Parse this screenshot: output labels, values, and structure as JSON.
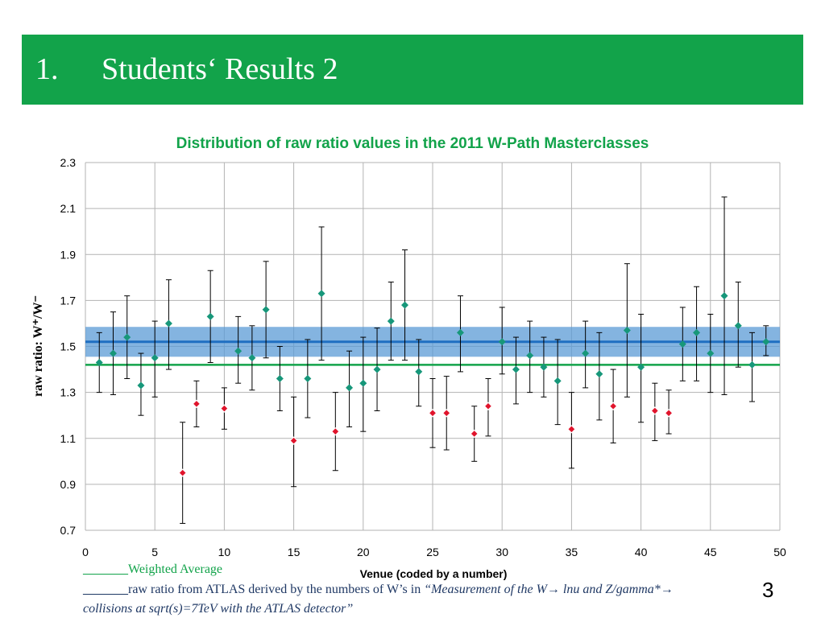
{
  "slide": {
    "number": "1.",
    "title": "Students‘ Results 2",
    "page_number": "3"
  },
  "legend": {
    "weighted_blank": "_______",
    "weighted_label": "Weighted Average",
    "atlas_blank": "_______",
    "atlas_text": "raw ratio from ATLAS derived by the numbers of W’s in ",
    "atlas_citation": "“Measurement of the W→ lnu and Z/gamma*→",
    "atlas_citation2": "collisions at sqrt(s)=7TeV with the ATLAS detector”"
  },
  "colors": {
    "header": "#12a34a",
    "student_marker": "#17977a",
    "reference_marker": "#e0142c",
    "weighted_average": "#1f6fc1",
    "weighted_band": "#5b9bd5",
    "atlas_line": "#12a34a"
  },
  "chart_data": {
    "type": "scatter",
    "title": "Distribution of raw ratio values in the 2011 W-Path Masterclasses",
    "xlabel": "Venue (coded by a number)",
    "ylabel": "raw ratio:  W⁺/W⁻",
    "xlim": [
      0,
      50
    ],
    "ylim": [
      0.7,
      2.3
    ],
    "xticks": [
      0,
      5,
      10,
      15,
      20,
      25,
      30,
      35,
      40,
      45,
      50
    ],
    "yticks": [
      0.7,
      0.9,
      1.1,
      1.3,
      1.5,
      1.7,
      1.9,
      2.1,
      2.3
    ],
    "ytick_labels": [
      "0.7",
      "0.9",
      "1.1",
      "1.3",
      "1.5",
      "1.7",
      "1.9",
      "2.1",
      "2.3"
    ],
    "grid": true,
    "error_bars": true,
    "weighted_average": 1.52,
    "weighted_average_band": [
      1.455,
      1.585
    ],
    "atlas_ratio": 1.42,
    "series": [
      {
        "marker": "diamond",
        "color": "#17977a",
        "points": [
          {
            "x": 1,
            "y": 1.43,
            "lo": 1.3,
            "hi": 1.56
          },
          {
            "x": 2,
            "y": 1.47,
            "lo": 1.29,
            "hi": 1.65
          },
          {
            "x": 3,
            "y": 1.54,
            "lo": 1.36,
            "hi": 1.72
          },
          {
            "x": 4,
            "y": 1.33,
            "lo": 1.2,
            "hi": 1.47
          },
          {
            "x": 5,
            "y": 1.45,
            "lo": 1.28,
            "hi": 1.61
          },
          {
            "x": 6,
            "y": 1.6,
            "lo": 1.4,
            "hi": 1.79
          },
          {
            "x": 9,
            "y": 1.63,
            "lo": 1.43,
            "hi": 1.83
          },
          {
            "x": 11,
            "y": 1.48,
            "lo": 1.34,
            "hi": 1.63
          },
          {
            "x": 12,
            "y": 1.45,
            "lo": 1.31,
            "hi": 1.59
          },
          {
            "x": 13,
            "y": 1.66,
            "lo": 1.45,
            "hi": 1.87
          },
          {
            "x": 14,
            "y": 1.36,
            "lo": 1.22,
            "hi": 1.5
          },
          {
            "x": 16,
            "y": 1.36,
            "lo": 1.19,
            "hi": 1.53
          },
          {
            "x": 17,
            "y": 1.73,
            "lo": 1.44,
            "hi": 2.02
          },
          {
            "x": 19,
            "y": 1.32,
            "lo": 1.15,
            "hi": 1.48
          },
          {
            "x": 20,
            "y": 1.34,
            "lo": 1.13,
            "hi": 1.54
          },
          {
            "x": 21,
            "y": 1.4,
            "lo": 1.22,
            "hi": 1.58
          },
          {
            "x": 22,
            "y": 1.61,
            "lo": 1.44,
            "hi": 1.78
          },
          {
            "x": 23,
            "y": 1.68,
            "lo": 1.44,
            "hi": 1.92
          },
          {
            "x": 24,
            "y": 1.39,
            "lo": 1.24,
            "hi": 1.53
          },
          {
            "x": 27,
            "y": 1.56,
            "lo": 1.39,
            "hi": 1.72
          },
          {
            "x": 30,
            "y": 1.52,
            "lo": 1.38,
            "hi": 1.67
          },
          {
            "x": 31,
            "y": 1.4,
            "lo": 1.25,
            "hi": 1.54
          },
          {
            "x": 32,
            "y": 1.46,
            "lo": 1.3,
            "hi": 1.61
          },
          {
            "x": 33,
            "y": 1.41,
            "lo": 1.28,
            "hi": 1.54
          },
          {
            "x": 34,
            "y": 1.35,
            "lo": 1.16,
            "hi": 1.53
          },
          {
            "x": 36,
            "y": 1.47,
            "lo": 1.32,
            "hi": 1.61
          },
          {
            "x": 37,
            "y": 1.38,
            "lo": 1.18,
            "hi": 1.56
          },
          {
            "x": 39,
            "y": 1.57,
            "lo": 1.28,
            "hi": 1.86
          },
          {
            "x": 40,
            "y": 1.41,
            "lo": 1.17,
            "hi": 1.64
          },
          {
            "x": 43,
            "y": 1.51,
            "lo": 1.35,
            "hi": 1.67
          },
          {
            "x": 44,
            "y": 1.56,
            "lo": 1.35,
            "hi": 1.76
          },
          {
            "x": 45,
            "y": 1.47,
            "lo": 1.3,
            "hi": 1.64
          },
          {
            "x": 46,
            "y": 1.72,
            "lo": 1.29,
            "hi": 2.15
          },
          {
            "x": 47,
            "y": 1.59,
            "lo": 1.41,
            "hi": 1.78
          },
          {
            "x": 48,
            "y": 1.42,
            "lo": 1.26,
            "hi": 1.56
          },
          {
            "x": 49,
            "y": 1.52,
            "lo": 1.46,
            "hi": 1.59
          }
        ]
      },
      {
        "marker": "diamond",
        "color": "#e0142c",
        "points": [
          {
            "x": 7,
            "y": 0.95,
            "lo": 0.73,
            "hi": 1.17
          },
          {
            "x": 8,
            "y": 1.25,
            "lo": 1.15,
            "hi": 1.35
          },
          {
            "x": 10,
            "y": 1.23,
            "lo": 1.14,
            "hi": 1.32
          },
          {
            "x": 15,
            "y": 1.09,
            "lo": 0.89,
            "hi": 1.28
          },
          {
            "x": 18,
            "y": 1.13,
            "lo": 0.96,
            "hi": 1.3
          },
          {
            "x": 25,
            "y": 1.21,
            "lo": 1.06,
            "hi": 1.36
          },
          {
            "x": 26,
            "y": 1.21,
            "lo": 1.05,
            "hi": 1.37
          },
          {
            "x": 28,
            "y": 1.12,
            "lo": 1.0,
            "hi": 1.24
          },
          {
            "x": 29,
            "y": 1.24,
            "lo": 1.11,
            "hi": 1.36
          },
          {
            "x": 35,
            "y": 1.14,
            "lo": 0.97,
            "hi": 1.3
          },
          {
            "x": 38,
            "y": 1.24,
            "lo": 1.08,
            "hi": 1.4
          },
          {
            "x": 41,
            "y": 1.22,
            "lo": 1.09,
            "hi": 1.34
          },
          {
            "x": 42,
            "y": 1.21,
            "lo": 1.12,
            "hi": 1.31
          }
        ]
      }
    ]
  }
}
